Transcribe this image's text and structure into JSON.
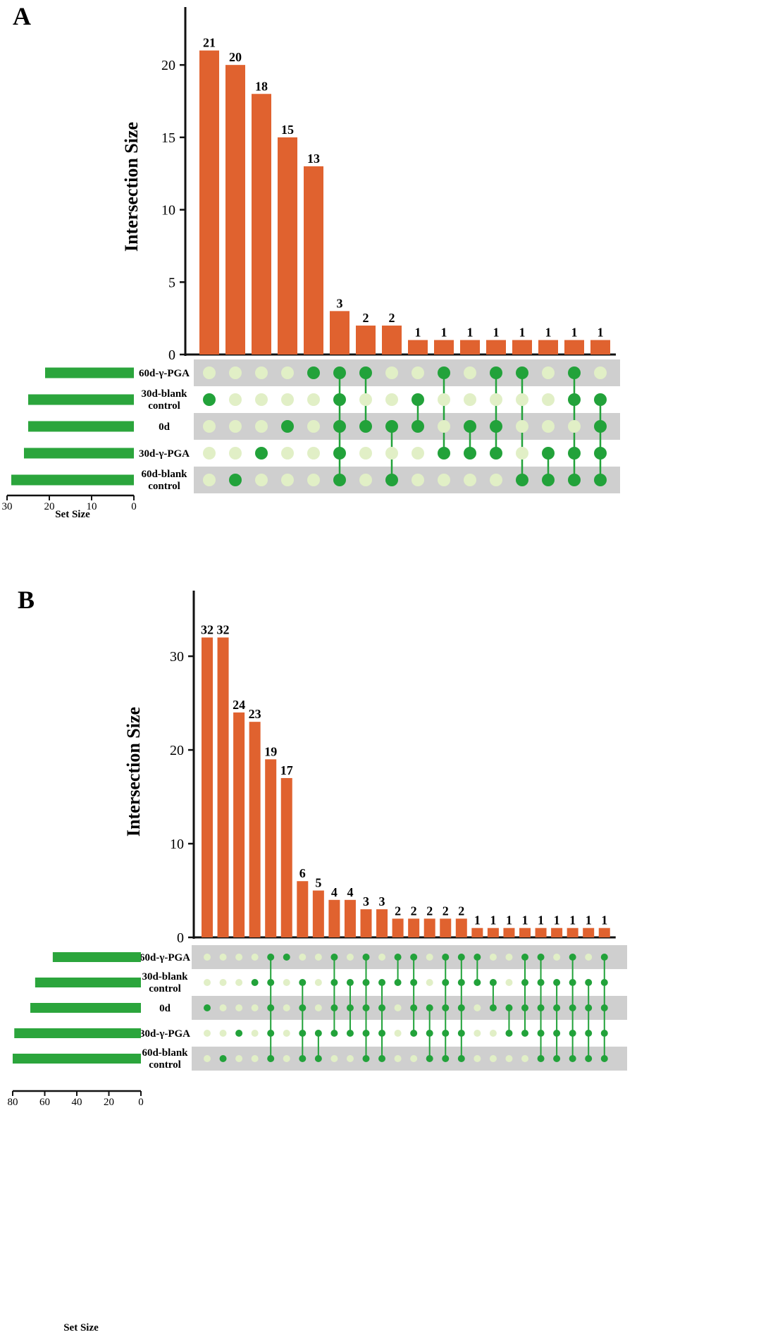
{
  "colors": {
    "bar": "#e0622f",
    "set_bar": "#2ba53c",
    "dot_on": "#22a23a",
    "dot_off": "#e1efc6",
    "stripe": "#cfcfcf",
    "axis": "#111111"
  },
  "chart_data": [
    {
      "type": "upset",
      "panel": "A",
      "ylabel": "Intersection Size",
      "ylim": [
        0,
        24
      ],
      "yticks": [
        0,
        5,
        10,
        15,
        20
      ],
      "sets": [
        "60d-γ-PGA",
        "30d-blank\ncontrol",
        "0d",
        "30d-γ-PGA",
        "60d-blank\ncontrol"
      ],
      "set_sizes": [
        21,
        25,
        25,
        26,
        29
      ],
      "setsize_label": "Set Size",
      "setsize_ticks": [
        30,
        20,
        10,
        0
      ],
      "setsize_max": 30,
      "intersections": [
        {
          "value": 21,
          "members": [
            1
          ]
        },
        {
          "value": 20,
          "members": [
            4
          ]
        },
        {
          "value": 18,
          "members": [
            3
          ]
        },
        {
          "value": 15,
          "members": [
            2
          ]
        },
        {
          "value": 13,
          "members": [
            0
          ]
        },
        {
          "value": 3,
          "members": [
            0,
            1,
            2,
            3,
            4
          ]
        },
        {
          "value": 2,
          "members": [
            0,
            2
          ]
        },
        {
          "value": 2,
          "members": [
            2,
            4
          ]
        },
        {
          "value": 1,
          "members": [
            1,
            2
          ]
        },
        {
          "value": 1,
          "members": [
            0,
            3
          ]
        },
        {
          "value": 1,
          "members": [
            2,
            3
          ]
        },
        {
          "value": 1,
          "members": [
            0,
            2,
            3
          ]
        },
        {
          "value": 1,
          "members": [
            0,
            4
          ]
        },
        {
          "value": 1,
          "members": [
            3,
            4
          ]
        },
        {
          "value": 1,
          "members": [
            0,
            1,
            3,
            4
          ]
        },
        {
          "value": 1,
          "members": [
            1,
            2,
            3,
            4
          ]
        }
      ]
    },
    {
      "type": "upset",
      "panel": "B",
      "ylabel": "Intersection Size",
      "ylim": [
        0,
        37
      ],
      "yticks": [
        0,
        10,
        20,
        30
      ],
      "sets": [
        "60d-γ-PGA",
        "30d-blank\ncontrol",
        "0d",
        "30d-γ-PGA",
        "60d-blank\ncontrol"
      ],
      "set_sizes": [
        55,
        66,
        69,
        79,
        80
      ],
      "setsize_label": "Set Size",
      "setsize_ticks": [
        80,
        60,
        40,
        20,
        0
      ],
      "setsize_max": 80,
      "intersections": [
        {
          "value": 32,
          "members": [
            2
          ]
        },
        {
          "value": 32,
          "members": [
            4
          ]
        },
        {
          "value": 24,
          "members": [
            3
          ]
        },
        {
          "value": 23,
          "members": [
            1
          ]
        },
        {
          "value": 19,
          "members": [
            0,
            1,
            2,
            3,
            4
          ]
        },
        {
          "value": 17,
          "members": [
            0
          ]
        },
        {
          "value": 6,
          "members": [
            1,
            2,
            3,
            4
          ]
        },
        {
          "value": 5,
          "members": [
            3,
            4
          ]
        },
        {
          "value": 4,
          "members": [
            0,
            1,
            2,
            3
          ]
        },
        {
          "value": 4,
          "members": [
            1,
            2,
            3
          ]
        },
        {
          "value": 3,
          "members": [
            0,
            1,
            2,
            3,
            4
          ]
        },
        {
          "value": 3,
          "members": [
            1,
            2,
            3,
            4
          ]
        },
        {
          "value": 2,
          "members": [
            0,
            1
          ]
        },
        {
          "value": 2,
          "members": [
            0,
            1,
            2,
            3
          ]
        },
        {
          "value": 2,
          "members": [
            2,
            3,
            4
          ]
        },
        {
          "value": 2,
          "members": [
            0,
            1,
            2,
            3,
            4
          ]
        },
        {
          "value": 2,
          "members": [
            0,
            1,
            2,
            3,
            4
          ]
        },
        {
          "value": 1,
          "members": [
            0,
            1
          ]
        },
        {
          "value": 1,
          "members": [
            1,
            2
          ]
        },
        {
          "value": 1,
          "members": [
            2,
            3
          ]
        },
        {
          "value": 1,
          "members": [
            0,
            1,
            2,
            3
          ]
        },
        {
          "value": 1,
          "members": [
            0,
            1,
            2,
            3,
            4
          ]
        },
        {
          "value": 1,
          "members": [
            1,
            2,
            3,
            4
          ]
        },
        {
          "value": 1,
          "members": [
            0,
            1,
            2,
            3,
            4
          ]
        },
        {
          "value": 1,
          "members": [
            1,
            2,
            3,
            4
          ]
        },
        {
          "value": 1,
          "members": [
            0,
            1,
            2,
            3,
            4
          ]
        }
      ]
    }
  ]
}
